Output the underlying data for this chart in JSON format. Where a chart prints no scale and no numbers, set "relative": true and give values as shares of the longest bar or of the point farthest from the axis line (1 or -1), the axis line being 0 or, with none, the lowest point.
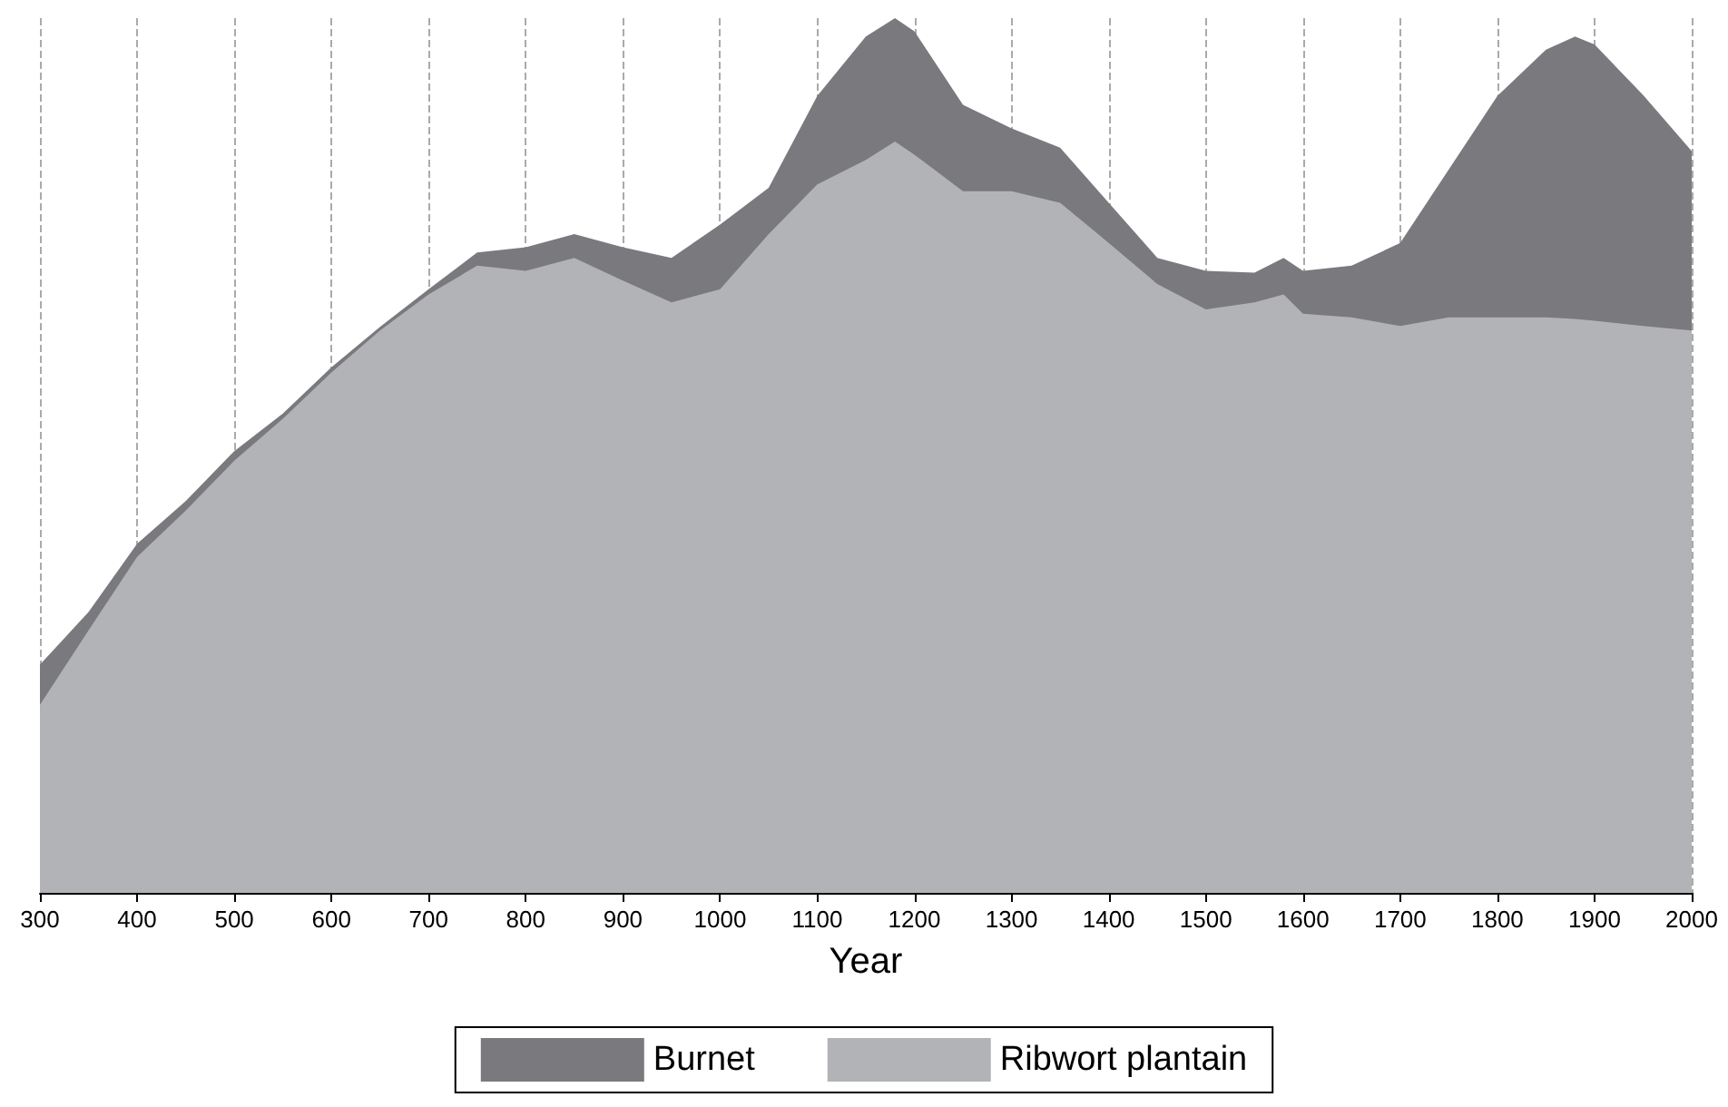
{
  "chart_data": {
    "type": "area",
    "relative": true,
    "stacked": true,
    "xlabel": "Year",
    "xlim": [
      300,
      2000
    ],
    "xticks": [
      300,
      400,
      500,
      600,
      700,
      800,
      900,
      1000,
      1100,
      1200,
      1300,
      1400,
      1500,
      1600,
      1700,
      1800,
      1900,
      2000
    ],
    "grid": "x",
    "legend": "bottom",
    "x": [
      300,
      350,
      400,
      450,
      500,
      550,
      600,
      650,
      700,
      750,
      800,
      850,
      900,
      950,
      1000,
      1050,
      1100,
      1150,
      1180,
      1200,
      1250,
      1300,
      1350,
      1400,
      1450,
      1500,
      1550,
      1580,
      1600,
      1650,
      1700,
      1750,
      1800,
      1850,
      1880,
      1900,
      1950,
      2000
    ],
    "series": [
      {
        "name": "Ribwort plantain",
        "color": "#b2b3b7",
        "values": [
          0.215,
          0.3,
          0.384,
          0.437,
          0.494,
          0.542,
          0.595,
          0.643,
          0.684,
          0.717,
          0.711,
          0.726,
          0.7,
          0.675,
          0.69,
          0.753,
          0.81,
          0.838,
          0.859,
          0.844,
          0.802,
          0.802,
          0.789,
          0.743,
          0.696,
          0.667,
          0.675,
          0.684,
          0.662,
          0.658,
          0.648,
          0.658,
          0.658,
          0.658,
          0.656,
          0.654,
          0.648,
          0.643
        ]
      },
      {
        "name": "Burnet",
        "color": "#7a797e",
        "values": [
          0.046,
          0.021,
          0.015,
          0.011,
          0.011,
          0.006,
          0.006,
          0.004,
          0.006,
          0.015,
          0.027,
          0.027,
          0.038,
          0.051,
          0.074,
          0.053,
          0.101,
          0.141,
          0.141,
          0.141,
          0.099,
          0.072,
          0.063,
          0.046,
          0.03,
          0.044,
          0.034,
          0.042,
          0.049,
          0.059,
          0.095,
          0.169,
          0.253,
          0.306,
          0.323,
          0.316,
          0.264,
          0.205
        ]
      }
    ]
  }
}
